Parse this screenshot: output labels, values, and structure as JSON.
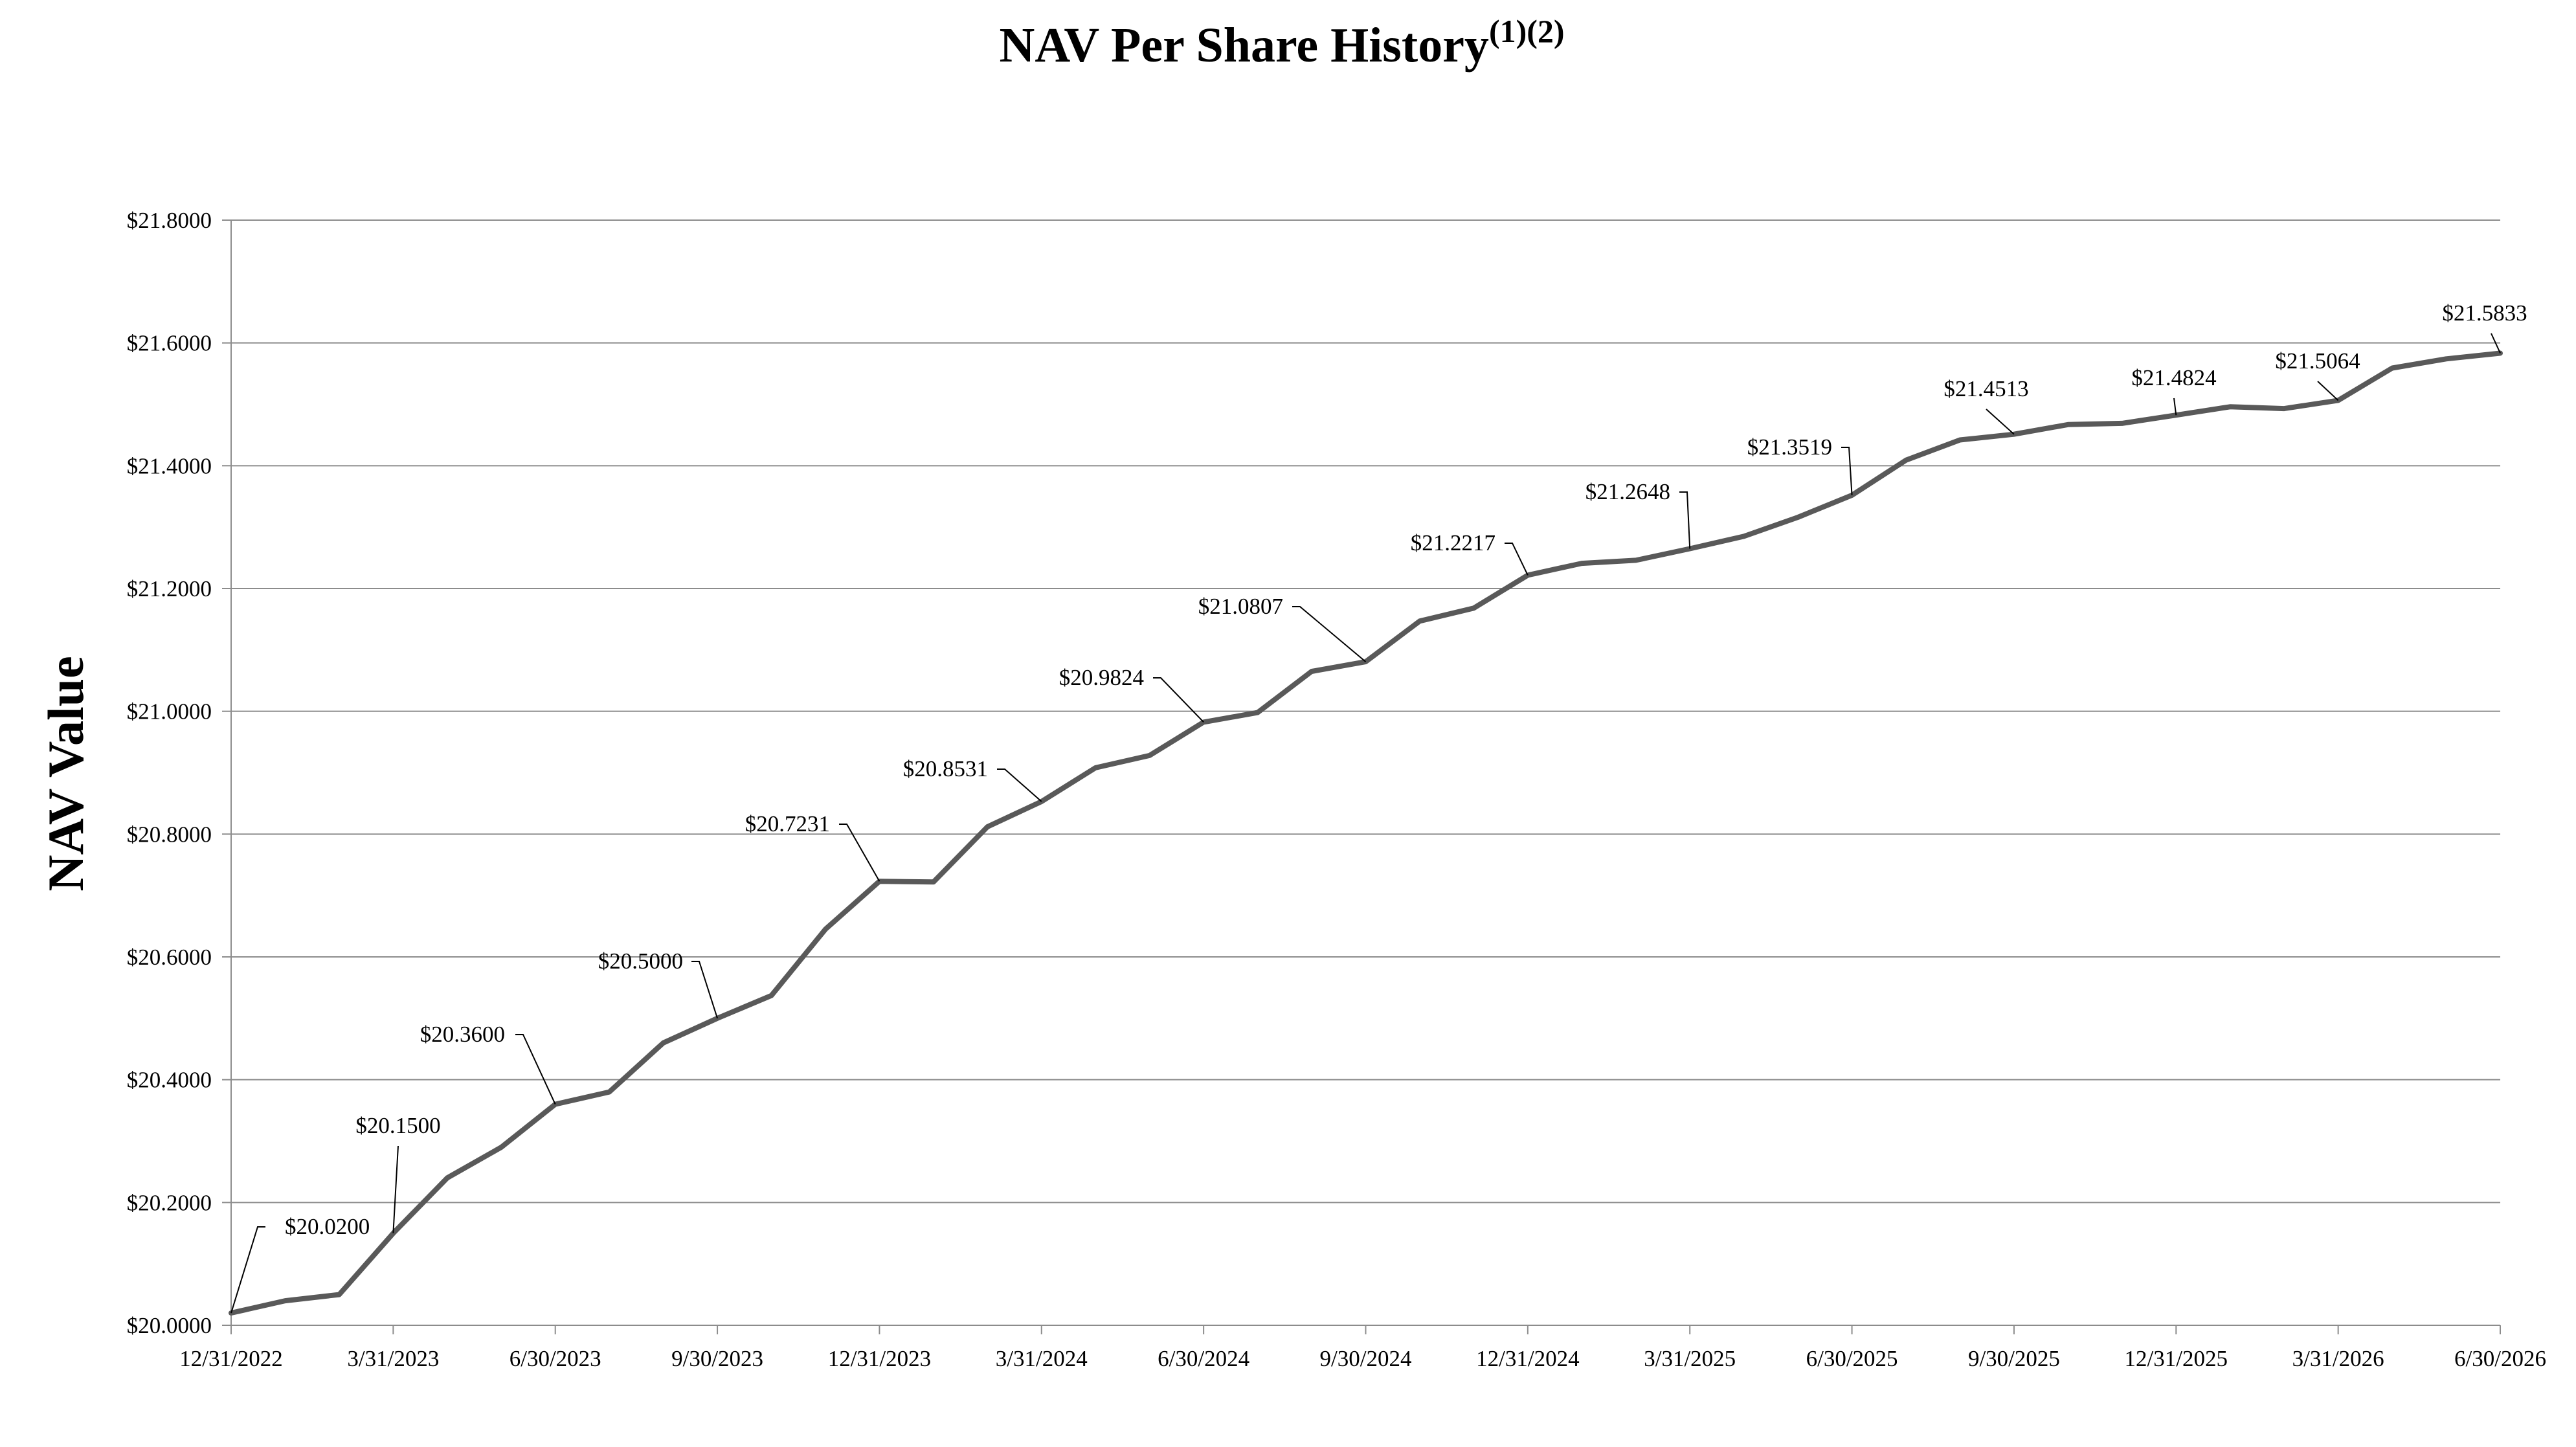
{
  "chart_data": {
    "type": "line",
    "title": "NAV Per Share History",
    "title_superscript": "(1)(2)",
    "ylabel": "NAV Value",
    "xlabel": "",
    "ylim": [
      20.0,
      21.8
    ],
    "y_ticks": [
      20.0,
      20.2,
      20.4,
      20.6,
      20.8,
      21.0,
      21.2,
      21.4,
      21.6,
      21.8
    ],
    "y_tick_labels": [
      "$20.0000",
      "$20.2000",
      "$20.4000",
      "$20.6000",
      "$20.8000",
      "$21.0000",
      "$21.2000",
      "$21.4000",
      "$21.6000",
      "$21.8000"
    ],
    "x_tick_labels": [
      "12/31/2022",
      "3/31/2023",
      "6/30/2023",
      "9/30/2023",
      "12/31/2023",
      "3/31/2024",
      "6/30/2024",
      "9/30/2024",
      "12/31/2024",
      "3/31/2025",
      "6/30/2025",
      "9/30/2025",
      "12/31/2025",
      "3/31/2026",
      "6/30/2026"
    ],
    "grid": true,
    "line_color": "#595959",
    "grid_color": "#8c8c8c",
    "values": [
      20.02,
      20.04,
      20.05,
      20.15,
      20.24,
      20.29,
      20.36,
      20.38,
      20.46,
      20.5,
      20.537,
      20.645,
      20.7231,
      20.722,
      20.812,
      20.8531,
      20.908,
      20.928,
      20.9824,
      20.998,
      21.065,
      21.0807,
      21.147,
      21.168,
      21.2217,
      21.241,
      21.246,
      21.2648,
      21.285,
      21.316,
      21.3519,
      21.409,
      21.442,
      21.4513,
      21.467,
      21.469,
      21.4824,
      21.496,
      21.493,
      21.5064,
      21.559,
      21.574,
      21.5833
    ],
    "annotations": [
      {
        "label": "$20.0200",
        "value": 20.02,
        "index": 0
      },
      {
        "label": "$20.1500",
        "value": 20.15,
        "index": 3
      },
      {
        "label": "$20.3600",
        "value": 20.36,
        "index": 6
      },
      {
        "label": "$20.5000",
        "value": 20.5,
        "index": 9
      },
      {
        "label": "$20.7231",
        "value": 20.7231,
        "index": 12
      },
      {
        "label": "$20.8531",
        "value": 20.8531,
        "index": 15
      },
      {
        "label": "$20.9824",
        "value": 20.9824,
        "index": 18
      },
      {
        "label": "$21.0807",
        "value": 21.0807,
        "index": 21
      },
      {
        "label": "$21.2217",
        "value": 21.2217,
        "index": 24
      },
      {
        "label": "$21.2648",
        "value": 21.2648,
        "index": 27
      },
      {
        "label": "$21.3519",
        "value": 21.3519,
        "index": 30
      },
      {
        "label": "$21.4513",
        "value": 21.4513,
        "index": 33
      },
      {
        "label": "$21.4824",
        "value": 21.4824,
        "index": 36
      },
      {
        "label": "$21.5064",
        "value": 21.5064,
        "index": 39
      },
      {
        "label": "$21.5833",
        "value": 21.5833,
        "index": 42
      }
    ]
  }
}
